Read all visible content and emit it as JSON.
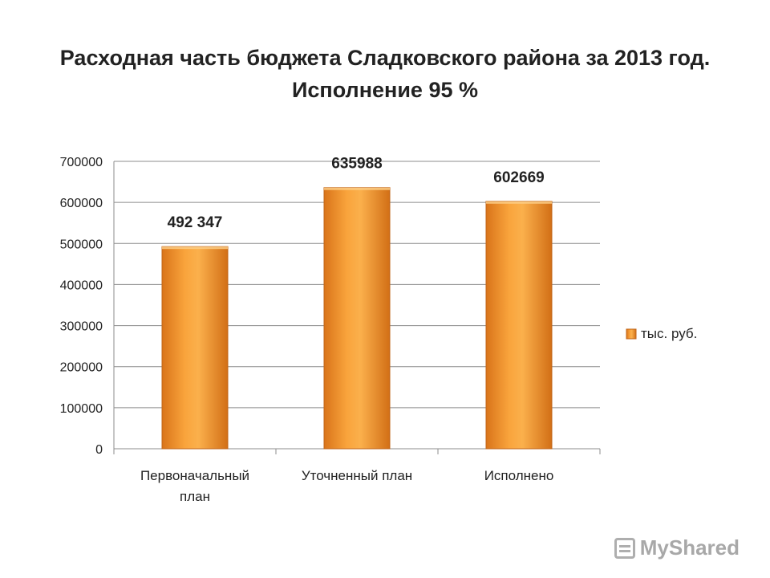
{
  "chart_data": {
    "type": "bar",
    "title_line1": "Расходная часть бюджета Сладковского района за 2013 год.",
    "title_line2": "Исполнение 95 %",
    "categories": [
      [
        "Первоначальный",
        "план"
      ],
      [
        "Уточненный план"
      ],
      [
        "Исполнено"
      ]
    ],
    "series": [
      {
        "name": "тыс. руб.",
        "values": [
          492347,
          635988,
          602669
        ],
        "color": "#f4952c"
      }
    ],
    "data_labels": [
      "492 347",
      "635988",
      "602669"
    ],
    "ylim": [
      0,
      700000
    ],
    "y_ticks": [
      "0",
      "100000",
      "200000",
      "300000",
      "400000",
      "500000",
      "600000",
      "700000"
    ],
    "grid": true,
    "legend": "right"
  },
  "watermark": "MyShared"
}
